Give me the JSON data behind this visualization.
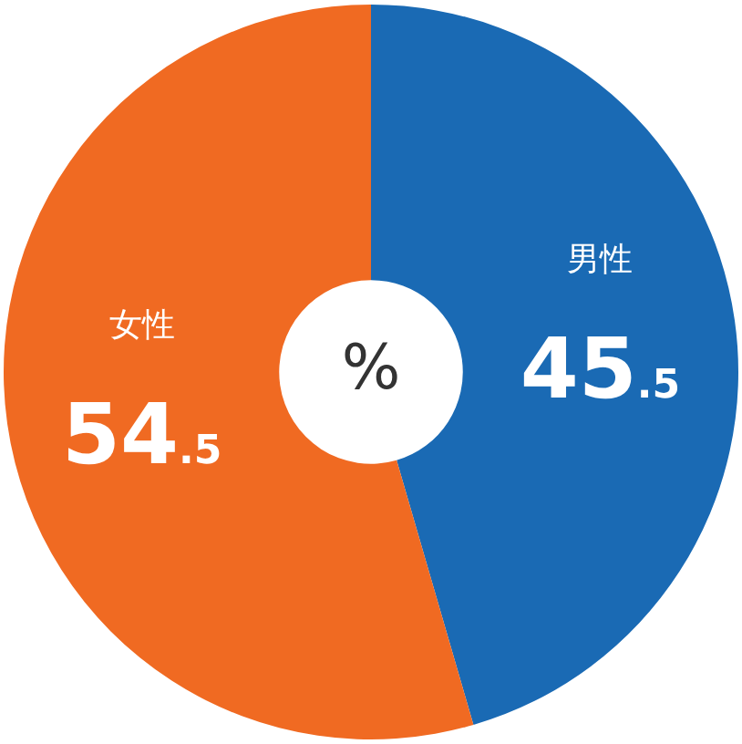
{
  "chart_data": {
    "type": "donut",
    "categories": [
      "男性",
      "女性"
    ],
    "values": [
      45.5,
      54.5
    ],
    "colors": [
      "#1a6ab4",
      "#f06a22"
    ],
    "data_labels": true,
    "legend": false,
    "annotations": [
      "%"
    ]
  }
}
